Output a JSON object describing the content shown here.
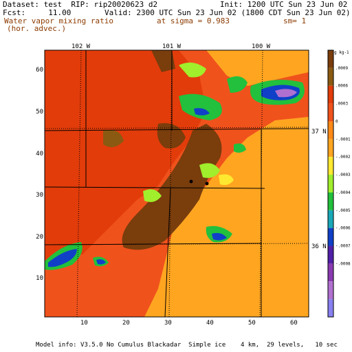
{
  "header": {
    "dataset_line": "Dataset: test  RIP: rip20020623 d2",
    "init_line": "Init: 1200 UTC Sun 23 Jun 02",
    "fcst_line": "Fcst:     11.00",
    "valid_line": "Valid: 2300 UTC Sun 23 Jun 02 (1800 CDT Sun 23 Jun 02)",
    "field_name": "Water vapor mixing ratio",
    "sigma_line": "at sigma = 0.983",
    "sm_line": "sm= 1",
    "field_desc": "(hor. advec.)"
  },
  "map": {
    "lon_labels": [
      "102 W",
      "101 W",
      "100 W"
    ],
    "lat_labels": [
      "37 N",
      "36 N"
    ],
    "x_ticks": [
      "10",
      "20",
      "30",
      "40",
      "50",
      "60"
    ],
    "y_ticks": [
      "10",
      "20",
      "30",
      "40",
      "50",
      "60"
    ],
    "xlim": [
      1,
      64
    ],
    "ylim": [
      1,
      64
    ]
  },
  "legend": {
    "unit": "g kg-1",
    "labels": [
      ".0009",
      ".0006",
      ".0003",
      "0",
      "-.0001",
      "-.0002",
      "-.0003",
      "-.0004",
      "-.0005",
      "-.0006",
      "-.0007",
      "-.0008"
    ],
    "colors": {
      "c1": "#7a3d0c",
      "c2": "#8b5a12",
      "c3": "#e23c0a",
      "c4": "#f0521c",
      "c5": "#ff8a18",
      "c6": "#ffa520",
      "c7": "#ffe830",
      "c8": "#a0ee2c",
      "c9": "#22c03c",
      "c10": "#18a8b8",
      "c11": "#1040c8",
      "c12": "#5020a8",
      "c13": "#8a3ab0",
      "c14": "#b070d0",
      "c15": "#8880f0"
    }
  },
  "footer": "Model info: V3.5.0 No Cumulus Blackadar  Simple ice    4 km,  29 levels,   10 sec"
}
